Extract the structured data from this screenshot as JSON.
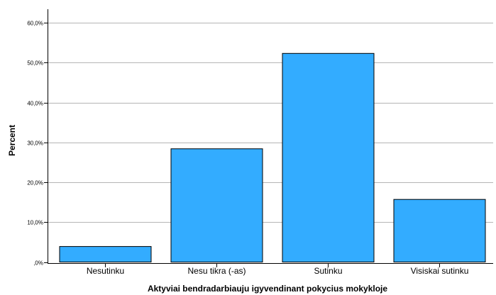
{
  "chart_data": {
    "type": "bar",
    "title": "",
    "xlabel": "Aktyviai bendradarbiauju igyvendinant pokycius mokykloje",
    "ylabel": "Percent",
    "categories": [
      "Nesutinku",
      "Nesu tikra (-as)",
      "Sutinku",
      "Visiskai sutinku"
    ],
    "values": [
      3.9,
      28.4,
      52.3,
      15.7
    ],
    "ylim": [
      0,
      60
    ],
    "yticks": [
      0,
      10,
      20,
      30,
      40,
      50,
      60
    ],
    "ytick_labels": [
      ",0%",
      "10,0%",
      "20,0%",
      "30,0%",
      "40,0%",
      "50,0%",
      "60,0%"
    ],
    "grid": true,
    "bar_color": "#33acff",
    "bar_edge_color": "#000000",
    "grid_color": "#b5b5b5",
    "axis_color": "#000000"
  }
}
